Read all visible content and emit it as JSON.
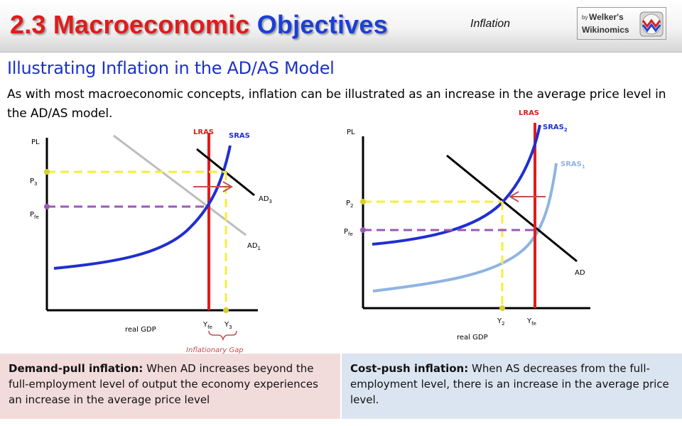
{
  "header": {
    "title_part1": "2.3 Macroeconomic",
    "title_part2": "Objectives",
    "topic": "Inflation",
    "logo_by": "by",
    "logo_line1": "Welker's",
    "logo_line2": "Wikinomics"
  },
  "subtitle": "Illustrating Inflation in the AD/AS Model",
  "intro": "As with most macroeconomic concepts, inflation can be illustrated as an increase in the average price level in the AD/AS model.",
  "diagram_left": {
    "y_axis": "PL",
    "x_axis": "real GDP",
    "price_levels": [
      {
        "main": "P",
        "sub": "3"
      },
      {
        "main": "P",
        "sub": "fe"
      }
    ],
    "outputs": [
      {
        "main": "Y",
        "sub": "fe"
      },
      {
        "main": "Y",
        "sub": "3"
      }
    ],
    "curves": [
      {
        "main": "LRAS",
        "sub": "",
        "color": "#e01c1c"
      },
      {
        "main": "SRAS",
        "sub": "",
        "color": "#1f2fd0"
      },
      {
        "main": "AD",
        "sub": "3",
        "color": "#000000"
      },
      {
        "main": "AD",
        "sub": "1",
        "color": "#bdbdbd"
      }
    ],
    "gap_label": "Inflationary Gap"
  },
  "diagram_right": {
    "y_axis": "PL",
    "x_axis": "real GDP",
    "price_levels": [
      {
        "main": "P",
        "sub": "2"
      },
      {
        "main": "P",
        "sub": "fe"
      }
    ],
    "outputs": [
      {
        "main": "Y",
        "sub": "2"
      },
      {
        "main": "Y",
        "sub": "fe"
      }
    ],
    "curves": [
      {
        "main": "LRAS",
        "sub": "",
        "color": "#e01c1c"
      },
      {
        "main": "SRAS",
        "sub": "2",
        "color": "#1f2fd0"
      },
      {
        "main": "SRAS",
        "sub": "1",
        "color": "#8fb4e3"
      },
      {
        "main": "AD",
        "sub": "",
        "color": "#000000"
      }
    ]
  },
  "boxes": {
    "left_title": "Demand-pull inflation:",
    "left_body": "When AD increases beyond the full-employment level of output the economy experiences an increase in the average price level",
    "right_title": "Cost-push inflation:",
    "right_body": "When AS decreases from the full-employment level, there is an increase in the average price level."
  },
  "colors": {
    "title_red": "#e11b1b",
    "title_blue": "#1c3fd6",
    "subtitle_blue": "#1c32c8",
    "lras_red": "#e01c1c",
    "sras_blue": "#1f2fd0",
    "sras_light": "#8fb4e3",
    "guide_yellow": "#f5ef3a",
    "guide_purple": "#9b59b6",
    "arrow": "#c0504d",
    "left_box_bg": "#f2dcdb",
    "right_box_bg": "#dbe5f1"
  }
}
